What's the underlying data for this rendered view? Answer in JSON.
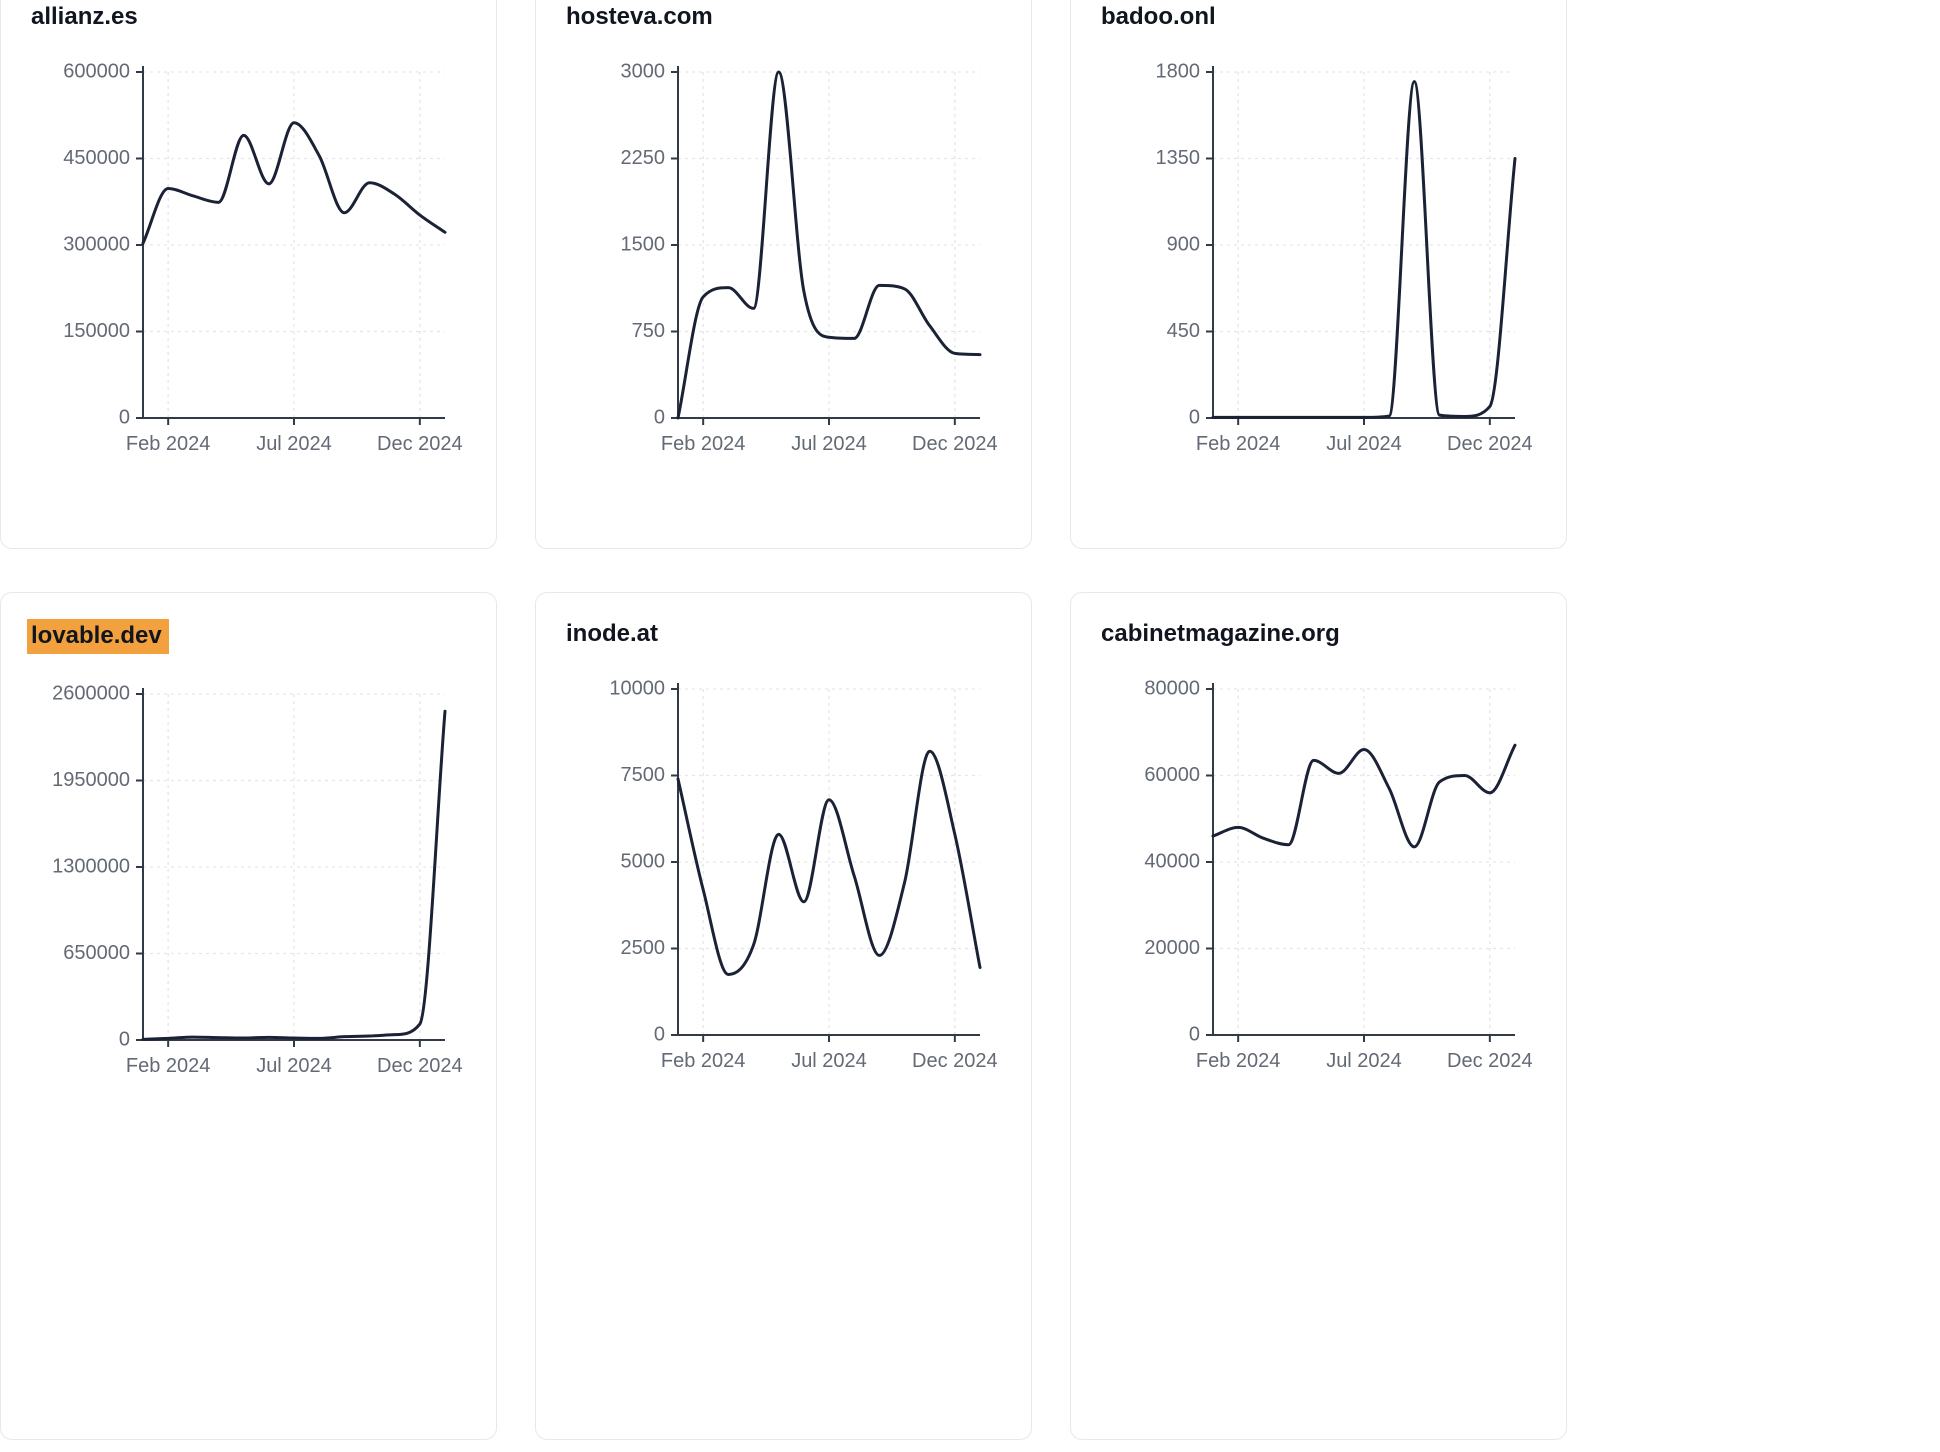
{
  "colors": {
    "line": "#1b2236",
    "axis": "#333a47",
    "grid": "#e4e6eb",
    "tick_label": "#636a75",
    "title": "#10151f",
    "highlight_bg": "#f2a13e",
    "card_border": "#e7e8ec"
  },
  "chart_data": [
    {
      "type": "line",
      "title": "allianz.es",
      "title_highlighted": false,
      "xlabel": "",
      "ylabel": "",
      "ylim": [
        0,
        600000
      ],
      "y_ticks": [
        0,
        150000,
        300000,
        450000,
        600000
      ],
      "x": [
        "Jan 2024",
        "Feb 2024",
        "Mar 2024",
        "Apr 2024",
        "May 2024",
        "Jun 2024",
        "Jul 2024",
        "Aug 2024",
        "Sep 2024",
        "Oct 2024",
        "Nov 2024",
        "Dec 2024",
        "Jan 2025"
      ],
      "x_tick_labels": [
        "Feb 2024",
        "Jul 2024",
        "Dec 2024"
      ],
      "x_tick_positions": [
        1,
        6,
        11
      ],
      "values": [
        303000,
        398000,
        385000,
        374000,
        490000,
        406000,
        512000,
        455000,
        356000,
        408000,
        388000,
        352000,
        322000
      ]
    },
    {
      "type": "line",
      "title": "hosteva.com",
      "title_highlighted": false,
      "xlabel": "",
      "ylabel": "",
      "ylim": [
        0,
        3000
      ],
      "y_ticks": [
        0,
        750,
        1500,
        2250,
        3000
      ],
      "x": [
        "Jan 2024",
        "Feb 2024",
        "Mar 2024",
        "Apr 2024",
        "May 2024",
        "Jun 2024",
        "Jul 2024",
        "Aug 2024",
        "Sep 2024",
        "Oct 2024",
        "Nov 2024",
        "Dec 2024",
        "Jan 2025"
      ],
      "x_tick_labels": [
        "Feb 2024",
        "Jul 2024",
        "Dec 2024"
      ],
      "x_tick_positions": [
        1,
        6,
        11
      ],
      "values": [
        0,
        1050,
        1130,
        950,
        3000,
        1100,
        700,
        690,
        1150,
        1120,
        800,
        560,
        550
      ]
    },
    {
      "type": "line",
      "title": "badoo.onl",
      "title_highlighted": false,
      "xlabel": "",
      "ylabel": "",
      "ylim": [
        0,
        1800
      ],
      "y_ticks": [
        0,
        450,
        900,
        1350,
        1800
      ],
      "x": [
        "Jan 2024",
        "Feb 2024",
        "Mar 2024",
        "Apr 2024",
        "May 2024",
        "Jun 2024",
        "Jul 2024",
        "Aug 2024",
        "Sep 2024",
        "Oct 2024",
        "Nov 2024",
        "Dec 2024",
        "Jan 2025"
      ],
      "x_tick_labels": [
        "Feb 2024",
        "Jul 2024",
        "Dec 2024"
      ],
      "x_tick_positions": [
        1,
        6,
        11
      ],
      "values": [
        3,
        3,
        3,
        3,
        3,
        3,
        3,
        10,
        1750,
        15,
        8,
        60,
        1350
      ]
    },
    {
      "type": "line",
      "title": "lovable.dev",
      "title_highlighted": true,
      "xlabel": "",
      "ylabel": "",
      "ylim": [
        0,
        2600000
      ],
      "y_ticks": [
        0,
        650000,
        1300000,
        1950000,
        2600000
      ],
      "x": [
        "Jan 2024",
        "Feb 2024",
        "Mar 2024",
        "Apr 2024",
        "May 2024",
        "Jun 2024",
        "Jul 2024",
        "Aug 2024",
        "Sep 2024",
        "Oct 2024",
        "Nov 2024",
        "Dec 2024",
        "Jan 2025"
      ],
      "x_tick_labels": [
        "Feb 2024",
        "Jul 2024",
        "Dec 2024"
      ],
      "x_tick_positions": [
        1,
        6,
        11
      ],
      "values": [
        5000,
        12000,
        22000,
        18000,
        15000,
        20000,
        15000,
        12000,
        25000,
        30000,
        40000,
        120000,
        2470000
      ]
    },
    {
      "type": "line",
      "title": "inode.at",
      "title_highlighted": false,
      "xlabel": "",
      "ylabel": "",
      "ylim": [
        0,
        10000
      ],
      "y_ticks": [
        0,
        2500,
        5000,
        7500,
        10000
      ],
      "x": [
        "Jan 2024",
        "Feb 2024",
        "Mar 2024",
        "Apr 2024",
        "May 2024",
        "Jun 2024",
        "Jul 2024",
        "Aug 2024",
        "Sep 2024",
        "Oct 2024",
        "Nov 2024",
        "Dec 2024",
        "Jan 2025"
      ],
      "x_tick_labels": [
        "Feb 2024",
        "Jul 2024",
        "Dec 2024"
      ],
      "x_tick_positions": [
        1,
        6,
        11
      ],
      "values": [
        7400,
        4200,
        1750,
        2600,
        5800,
        3850,
        6800,
        4600,
        2300,
        4400,
        8200,
        5800,
        1950
      ]
    },
    {
      "type": "line",
      "title": "cabinetmagazine.org",
      "title_highlighted": false,
      "xlabel": "",
      "ylabel": "",
      "ylim": [
        0,
        80000
      ],
      "y_ticks": [
        0,
        20000,
        40000,
        60000,
        80000
      ],
      "x": [
        "Jan 2024",
        "Feb 2024",
        "Mar 2024",
        "Apr 2024",
        "May 2024",
        "Jun 2024",
        "Jul 2024",
        "Aug 2024",
        "Sep 2024",
        "Oct 2024",
        "Nov 2024",
        "Dec 2024",
        "Jan 2025"
      ],
      "x_tick_labels": [
        "Feb 2024",
        "Jul 2024",
        "Dec 2024"
      ],
      "x_tick_positions": [
        1,
        6,
        11
      ],
      "values": [
        46000,
        48000,
        45500,
        44000,
        63500,
        60500,
        66000,
        57000,
        43500,
        58500,
        60000,
        56000,
        67000
      ]
    }
  ]
}
